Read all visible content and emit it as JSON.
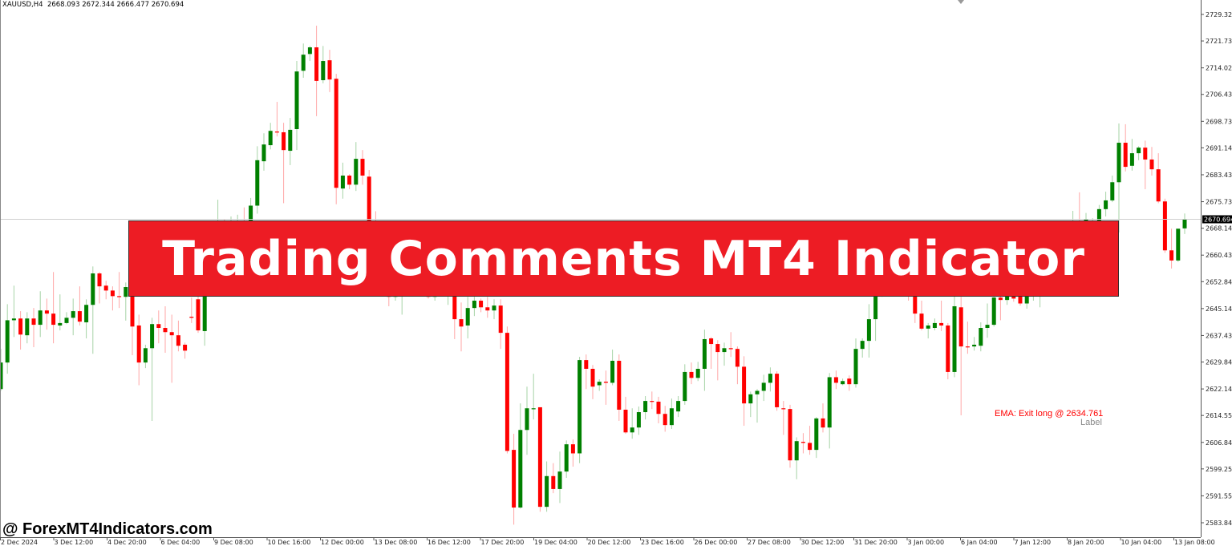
{
  "header": {
    "symbol": "XAUUSD,H4",
    "ohlc": "2668.093 2672.344 2666.477 2670.694"
  },
  "banner": {
    "title": "Trading Comments MT4 Indicator"
  },
  "watermark": "@ ForexMT4Indicators.com",
  "annotation": {
    "text": "EMA: Exit long @ 2634.761",
    "sublabel": "Label",
    "color": "#FF0000"
  },
  "chart_data": {
    "type": "candlestick",
    "symbol": "XAUUSD",
    "timeframe": "H4",
    "colors": {
      "bull": "#008000",
      "bear": "#FF0000",
      "current_price_bg": "#000000"
    },
    "current_price": 2670.694,
    "ylim": [
      2583.845,
      2729.32
    ],
    "y_ticks": [
      "2729.320",
      "2721.730",
      "2714.025",
      "2706.435",
      "2698.730",
      "2691.140",
      "2683.435",
      "2675.730",
      "2668.140",
      "2660.435",
      "2652.845",
      "2645.140",
      "2637.435",
      "2629.845",
      "2622.140",
      "2614.550",
      "2606.845",
      "2599.255",
      "2591.550",
      "2583.845"
    ],
    "x_ticks": [
      "2 Dec 2024",
      "3 Dec 12:00",
      "4 Dec 20:00",
      "6 Dec 04:00",
      "9 Dec 08:00",
      "10 Dec 16:00",
      "12 Dec 00:00",
      "13 Dec 08:00",
      "16 Dec 12:00",
      "17 Dec 20:00",
      "19 Dec 04:00",
      "20 Dec 12:00",
      "23 Dec 16:00",
      "26 Dec 00:00",
      "27 Dec 08:00",
      "30 Dec 12:00",
      "31 Dec 20:00",
      "3 Jan 00:00",
      "6 Jan 04:00",
      "7 Jan 12:00",
      "8 Jan 20:00",
      "10 Jan 04:00",
      "13 Jan 08:00"
    ],
    "grid": false,
    "candles_ohlc": [
      [
        2622.1,
        2633.6,
        2621.6,
        2629.7
      ],
      [
        2629.7,
        2646.4,
        2626.5,
        2641.8
      ],
      [
        2641.8,
        2651.7,
        2637.0,
        2642.3
      ],
      [
        2642.3,
        2644.4,
        2633.4,
        2637.7
      ],
      [
        2637.5,
        2644.1,
        2635.2,
        2642.3
      ],
      [
        2642.3,
        2645.3,
        2634.1,
        2640.5
      ],
      [
        2640.5,
        2650.1,
        2637.0,
        2644.6
      ],
      [
        2644.6,
        2648.0,
        2639.1,
        2643.7
      ],
      [
        2643.7,
        2655.6,
        2635.2,
        2640.5
      ],
      [
        2640.3,
        2649.2,
        2638.9,
        2641.0
      ],
      [
        2641.0,
        2644.1,
        2640.7,
        2642.5
      ],
      [
        2642.5,
        2648.0,
        2637.5,
        2644.4
      ],
      [
        2644.4,
        2651.5,
        2640.3,
        2641.4
      ],
      [
        2641.2,
        2647.8,
        2636.6,
        2646.2
      ],
      [
        2646.2,
        2657.2,
        2632.2,
        2655.2
      ],
      [
        2655.2,
        2655.6,
        2646.6,
        2651.5
      ],
      [
        2651.7,
        2653.1,
        2647.8,
        2650.3
      ],
      [
        2650.3,
        2651.5,
        2644.6,
        2648.7
      ],
      [
        2648.7,
        2655.6,
        2645.3,
        2648.5
      ],
      [
        2648.5,
        2652.6,
        2641.7,
        2651.3
      ],
      [
        2654.3,
        2656.6,
        2631.8,
        2640.0
      ],
      [
        2640.3,
        2643.4,
        2623.2,
        2629.7
      ],
      [
        2629.7,
        2634.8,
        2628.1,
        2633.8
      ],
      [
        2633.8,
        2642.5,
        2613.0,
        2640.7
      ],
      [
        2640.7,
        2644.6,
        2635.2,
        2639.6
      ],
      [
        2639.6,
        2645.8,
        2632.5,
        2638.4
      ],
      [
        2638.4,
        2643.4,
        2623.9,
        2637.5
      ],
      [
        2637.5,
        2641.7,
        2632.9,
        2634.5
      ],
      [
        2634.8,
        2635.4,
        2630.8,
        2633.1
      ],
      [
        2642.8,
        2648.3,
        2641.0,
        2642.5
      ],
      [
        2647.8,
        2650.8,
        2638.2,
        2638.9
      ],
      [
        2638.7,
        2656.6,
        2634.5,
        2654.3
      ],
      [
        2654.3,
        2666.9,
        2653.1,
        2664.6
      ],
      [
        2664.6,
        2676.3,
        2663.5,
        2669.2
      ],
      [
        2669.2,
        2670.6,
        2665.7,
        2668.0
      ],
      [
        2668.0,
        2671.5,
        2666.4,
        2669.6
      ],
      [
        2669.6,
        2672.0,
        2668.0,
        2670.3
      ],
      [
        2670.3,
        2674.1,
        2668.0,
        2669.2
      ],
      [
        2669.2,
        2676.8,
        2668.0,
        2674.6
      ],
      [
        2674.6,
        2691.6,
        2672.3,
        2687.6
      ],
      [
        2687.3,
        2695.3,
        2684.6,
        2692.1
      ],
      [
        2691.9,
        2698.3,
        2690.7,
        2696.0
      ],
      [
        2695.8,
        2704.3,
        2694.4,
        2695.6
      ],
      [
        2695.6,
        2698.3,
        2675.3,
        2690.5
      ],
      [
        2690.3,
        2699.7,
        2686.2,
        2696.3
      ],
      [
        2696.5,
        2716.0,
        2690.5,
        2713.0
      ],
      [
        2713.2,
        2721.0,
        2711.2,
        2717.8
      ],
      [
        2718.0,
        2720.3,
        2716.0,
        2719.9
      ],
      [
        2719.9,
        2726.1,
        2700.2,
        2710.3
      ],
      [
        2710.5,
        2720.3,
        2709.6,
        2716.0
      ],
      [
        2716.2,
        2719.2,
        2707.1,
        2710.7
      ],
      [
        2710.9,
        2712.3,
        2675.0,
        2679.7
      ],
      [
        2679.5,
        2686.9,
        2676.6,
        2683.2
      ],
      [
        2683.2,
        2683.6,
        2679.3,
        2680.6
      ],
      [
        2680.6,
        2692.8,
        2678.8,
        2688.0
      ],
      [
        2688.0,
        2690.5,
        2680.6,
        2683.2
      ],
      [
        2682.9,
        2684.8,
        2660.0,
        2664.6
      ],
      [
        2664.6,
        2673.0,
        2655.4,
        2657.7
      ],
      [
        2657.7,
        2660.0,
        2650.8,
        2654.3
      ],
      [
        2654.3,
        2656.6,
        2645.8,
        2648.5
      ],
      [
        2648.5,
        2653.1,
        2647.4,
        2650.8
      ],
      [
        2650.8,
        2655.4,
        2643.4,
        2653.1
      ],
      [
        2653.1,
        2657.7,
        2651.9,
        2655.4
      ],
      [
        2655.4,
        2657.7,
        2651.9,
        2653.6
      ],
      [
        2653.6,
        2655.4,
        2649.7,
        2650.8
      ],
      [
        2650.8,
        2653.1,
        2648.0,
        2648.5
      ],
      [
        2648.5,
        2653.1,
        2647.4,
        2651.9
      ],
      [
        2651.9,
        2655.4,
        2650.8,
        2654.3
      ],
      [
        2650.8,
        2655.4,
        2646.2,
        2653.1
      ],
      [
        2651.9,
        2654.3,
        2636.4,
        2642.1
      ],
      [
        2642.1,
        2646.9,
        2632.9,
        2640.0
      ],
      [
        2640.3,
        2648.5,
        2636.6,
        2645.3
      ],
      [
        2645.3,
        2648.5,
        2643.0,
        2647.4
      ],
      [
        2647.4,
        2648.0,
        2644.1,
        2645.5
      ],
      [
        2645.5,
        2648.5,
        2642.5,
        2644.6
      ],
      [
        2644.6,
        2647.8,
        2642.1,
        2646.0
      ],
      [
        2646.0,
        2647.8,
        2633.6,
        2638.2
      ],
      [
        2638.2,
        2640.0,
        2603.7,
        2604.4
      ],
      [
        2604.7,
        2609.3,
        2583.3,
        2588.2
      ],
      [
        2588.2,
        2618.0,
        2587.9,
        2610.4
      ],
      [
        2610.4,
        2622.8,
        2603.3,
        2616.6
      ],
      [
        2616.4,
        2626.5,
        2613.4,
        2616.6
      ],
      [
        2616.9,
        2616.9,
        2587.0,
        2588.4
      ],
      [
        2588.4,
        2601.4,
        2587.0,
        2597.2
      ],
      [
        2597.2,
        2600.9,
        2592.3,
        2593.5
      ],
      [
        2593.5,
        2604.2,
        2589.5,
        2598.5
      ],
      [
        2598.5,
        2607.4,
        2596.7,
        2606.3
      ],
      [
        2606.3,
        2607.7,
        2599.9,
        2603.7
      ],
      [
        2603.7,
        2631.3,
        2600.9,
        2630.4
      ],
      [
        2630.4,
        2632.0,
        2622.1,
        2627.9
      ],
      [
        2627.9,
        2629.0,
        2619.2,
        2622.8
      ],
      [
        2623.2,
        2624.9,
        2621.6,
        2624.2
      ],
      [
        2624.2,
        2627.4,
        2617.6,
        2623.9
      ],
      [
        2623.9,
        2633.4,
        2623.2,
        2630.2
      ],
      [
        2630.2,
        2632.0,
        2613.0,
        2616.2
      ],
      [
        2616.2,
        2619.9,
        2609.3,
        2609.7
      ],
      [
        2609.7,
        2616.6,
        2607.9,
        2611.1
      ],
      [
        2611.1,
        2617.1,
        2609.0,
        2615.5
      ],
      [
        2615.5,
        2620.1,
        2613.4,
        2618.7
      ],
      [
        2618.7,
        2621.4,
        2616.4,
        2618.5
      ],
      [
        2618.5,
        2619.9,
        2612.3,
        2615.0
      ],
      [
        2615.0,
        2617.3,
        2609.9,
        2611.8
      ],
      [
        2611.8,
        2619.4,
        2610.7,
        2616.6
      ],
      [
        2615.7,
        2620.1,
        2614.1,
        2618.7
      ],
      [
        2618.7,
        2629.2,
        2617.6,
        2627.0
      ],
      [
        2627.0,
        2629.7,
        2623.5,
        2625.3
      ],
      [
        2625.3,
        2629.9,
        2624.4,
        2627.9
      ],
      [
        2627.9,
        2639.1,
        2621.6,
        2636.4
      ],
      [
        2636.6,
        2637.0,
        2627.9,
        2635.0
      ],
      [
        2635.0,
        2636.1,
        2624.6,
        2632.7
      ],
      [
        2632.7,
        2635.4,
        2628.8,
        2633.8
      ],
      [
        2633.8,
        2638.4,
        2631.3,
        2633.6
      ],
      [
        2633.6,
        2634.3,
        2623.5,
        2628.5
      ],
      [
        2628.5,
        2631.5,
        2611.6,
        2618.0
      ],
      [
        2618.0,
        2621.4,
        2614.1,
        2620.6
      ],
      [
        2620.6,
        2622.1,
        2612.5,
        2621.6
      ],
      [
        2621.6,
        2626.2,
        2618.7,
        2623.9
      ],
      [
        2623.9,
        2628.3,
        2621.4,
        2626.5
      ],
      [
        2626.5,
        2627.2,
        2615.9,
        2616.9
      ],
      [
        2616.6,
        2618.7,
        2609.0,
        2616.4
      ],
      [
        2616.4,
        2617.6,
        2599.6,
        2601.7
      ],
      [
        2601.7,
        2608.3,
        2596.3,
        2607.2
      ],
      [
        2607.0,
        2609.5,
        2603.7,
        2606.7
      ],
      [
        2606.7,
        2611.6,
        2603.3,
        2604.7
      ],
      [
        2604.7,
        2614.1,
        2602.4,
        2613.7
      ],
      [
        2613.7,
        2618.0,
        2609.7,
        2611.1
      ],
      [
        2611.1,
        2626.7,
        2605.1,
        2625.5
      ],
      [
        2625.5,
        2627.4,
        2622.1,
        2623.9
      ],
      [
        2623.5,
        2625.1,
        2623.2,
        2624.4
      ],
      [
        2625.1,
        2626.0,
        2621.6,
        2623.5
      ],
      [
        2623.5,
        2636.6,
        2622.5,
        2633.6
      ],
      [
        2633.6,
        2636.6,
        2631.1,
        2635.9
      ],
      [
        2635.9,
        2646.4,
        2631.1,
        2642.1
      ],
      [
        2642.1,
        2651.9,
        2635.9,
        2649.7
      ],
      [
        2649.7,
        2656.6,
        2648.5,
        2654.3
      ],
      [
        2654.3,
        2656.6,
        2650.8,
        2653.1
      ],
      [
        2653.1,
        2657.7,
        2650.8,
        2655.4
      ],
      [
        2655.4,
        2657.7,
        2649.7,
        2651.9
      ],
      [
        2651.9,
        2654.3,
        2647.4,
        2649.7
      ],
      [
        2650.8,
        2653.1,
        2641.0,
        2643.7
      ],
      [
        2643.7,
        2647.4,
        2638.9,
        2639.4
      ],
      [
        2639.4,
        2641.0,
        2636.6,
        2640.3
      ],
      [
        2639.6,
        2642.3,
        2638.9,
        2641.0
      ],
      [
        2641.0,
        2647.4,
        2638.7,
        2640.3
      ],
      [
        2640.3,
        2641.0,
        2624.9,
        2627.0
      ],
      [
        2627.0,
        2648.7,
        2625.5,
        2645.8
      ],
      [
        2645.5,
        2648.5,
        2614.6,
        2634.3
      ],
      [
        2634.3,
        2641.4,
        2632.2,
        2634.1
      ],
      [
        2634.3,
        2637.0,
        2633.1,
        2634.8
      ],
      [
        2634.5,
        2641.2,
        2632.9,
        2639.6
      ],
      [
        2639.6,
        2646.6,
        2636.8,
        2640.5
      ],
      [
        2640.5,
        2649.7,
        2640.0,
        2648.3
      ],
      [
        2648.3,
        2649.7,
        2641.8,
        2647.6
      ],
      [
        2647.6,
        2650.8,
        2646.2,
        2648.7
      ],
      [
        2648.9,
        2650.8,
        2647.1,
        2648.0
      ],
      [
        2648.7,
        2650.8,
        2646.0,
        2646.6
      ],
      [
        2646.6,
        2650.3,
        2645.1,
        2648.7
      ],
      [
        2648.7,
        2651.9,
        2647.4,
        2650.3
      ],
      [
        2650.3,
        2654.3,
        2645.5,
        2651.9
      ],
      [
        2651.9,
        2656.6,
        2650.8,
        2654.3
      ],
      [
        2654.3,
        2656.6,
        2651.9,
        2653.1
      ],
      [
        2653.1,
        2658.9,
        2651.9,
        2656.6
      ],
      [
        2656.6,
        2662.3,
        2655.4,
        2660.0
      ],
      [
        2660.0,
        2673.1,
        2658.9,
        2670.3
      ],
      [
        2670.3,
        2678.4,
        2664.6,
        2668.0
      ],
      [
        2668.0,
        2672.5,
        2666.9,
        2670.8
      ],
      [
        2669.2,
        2671.0,
        2668.0,
        2670.3
      ],
      [
        2669.9,
        2674.8,
        2669.2,
        2673.6
      ],
      [
        2673.6,
        2678.6,
        2671.5,
        2676.1
      ],
      [
        2676.1,
        2683.2,
        2675.6,
        2681.3
      ],
      [
        2681.3,
        2698.1,
        2666.9,
        2692.6
      ],
      [
        2692.6,
        2697.9,
        2684.4,
        2685.7
      ],
      [
        2686.0,
        2693.7,
        2684.6,
        2689.6
      ],
      [
        2689.6,
        2691.6,
        2687.6,
        2691.2
      ],
      [
        2691.2,
        2693.2,
        2679.3,
        2687.8
      ],
      [
        2687.8,
        2691.4,
        2683.2,
        2685.0
      ],
      [
        2685.0,
        2689.6,
        2675.3,
        2675.8
      ],
      [
        2675.8,
        2676.6,
        2661.1,
        2661.8
      ],
      [
        2661.8,
        2668.0,
        2656.6,
        2658.9
      ],
      [
        2658.9,
        2668.0,
        2658.5,
        2668.0
      ],
      [
        2668.093,
        2672.344,
        2666.477,
        2670.694
      ]
    ]
  }
}
